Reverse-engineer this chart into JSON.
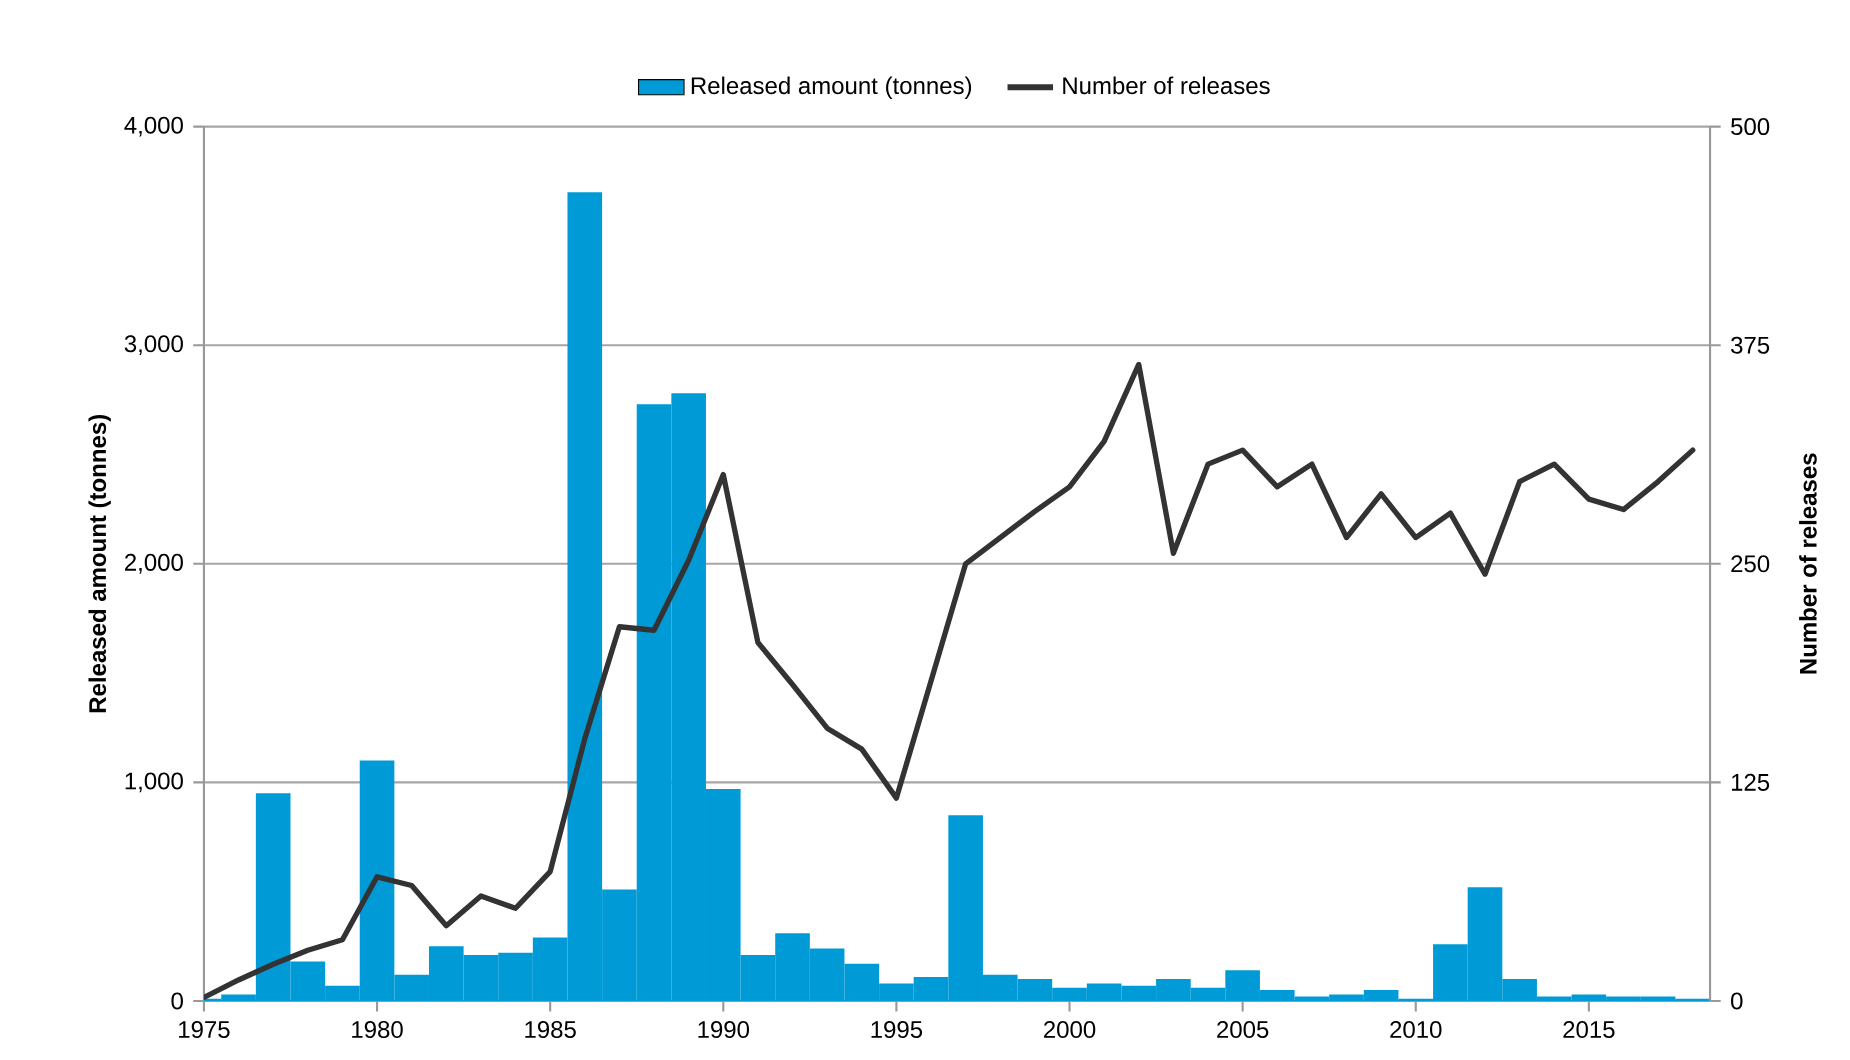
{
  "chart_data": {
    "type": "bar",
    "x": [
      1975,
      1976,
      1977,
      1978,
      1979,
      1980,
      1981,
      1982,
      1983,
      1984,
      1985,
      1986,
      1987,
      1988,
      1989,
      1990,
      1991,
      1992,
      1993,
      1994,
      1995,
      1996,
      1997,
      1998,
      1999,
      2000,
      2001,
      2002,
      2003,
      2004,
      2005,
      2006,
      2007,
      2008,
      2009,
      2010,
      2011,
      2012,
      2013,
      2014,
      2015,
      2016,
      2017,
      2018
    ],
    "series": [
      {
        "name": "Released amount (tonnes)",
        "color": "#009bd6",
        "values": [
          10,
          30,
          950,
          180,
          70,
          1100,
          120,
          250,
          210,
          220,
          290,
          3700,
          510,
          2730,
          2780,
          970,
          210,
          310,
          240,
          170,
          80,
          110,
          850,
          120,
          100,
          60,
          80,
          70,
          100,
          60,
          140,
          50,
          20,
          30,
          50,
          10,
          260,
          520,
          100,
          20,
          30,
          20,
          20,
          10
        ]
      },
      {
        "name": "Number of releases",
        "type": "line",
        "axis": "y2",
        "color": "#333333",
        "values": [
          2,
          12,
          21,
          29,
          35,
          71,
          66,
          43,
          60,
          53,
          74,
          150,
          214,
          212,
          252,
          301,
          205,
          181,
          156,
          144,
          116,
          183,
          250,
          265,
          280,
          294,
          320,
          364,
          256,
          307,
          315,
          294,
          307,
          265,
          290,
          265,
          279,
          244,
          297,
          307,
          287,
          281,
          297,
          315
        ]
      }
    ],
    "ylabel": "Released amount (tonnes)",
    "y2label": "Number of releases",
    "xlim": [
      1975,
      2018.5
    ],
    "xticks": [
      1975,
      1980,
      1985,
      1990,
      1995,
      2000,
      2005,
      2010,
      2015
    ],
    "ylim": [
      0,
      4000
    ],
    "yticks": [
      0,
      {
        "value": 1000,
        "label": "1,000"
      },
      {
        "value": 2000,
        "label": "2,000"
      },
      {
        "value": 3000,
        "label": "3,000"
      },
      {
        "value": 4000,
        "label": "4,000"
      }
    ],
    "y2lim": [
      0,
      500
    ],
    "y2ticks": [
      0,
      125,
      250,
      375,
      500
    ],
    "grid": "y",
    "legend": "top",
    "line_style": "solid",
    "marker": "none"
  }
}
